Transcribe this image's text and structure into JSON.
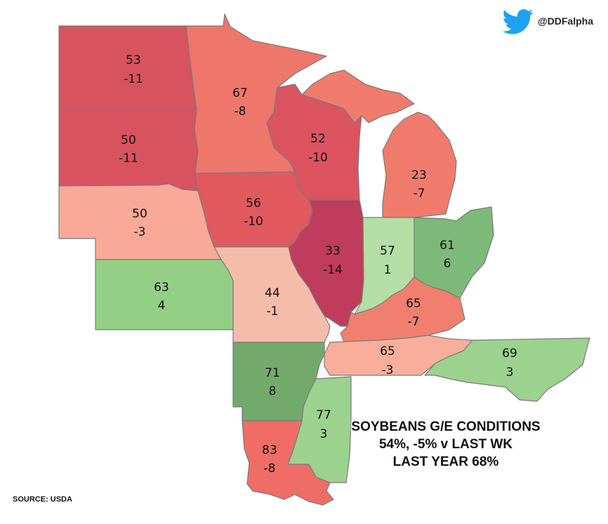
{
  "brand": {
    "handle": "@DDFalpha",
    "icon": "twitter-bird-icon",
    "icon_color": "#1DA1F2"
  },
  "summary": {
    "line1": "SOYBEANS G/E CONDITIONS",
    "line2": "54%, -5% v LAST WK",
    "line3": "LAST YEAR 68%"
  },
  "source": "SOURCE: USDA",
  "states": [
    {
      "id": "ND",
      "value": "53",
      "change": "-11",
      "color": "#d9525f"
    },
    {
      "id": "SD",
      "value": "50",
      "change": "-11",
      "color": "#d9525f"
    },
    {
      "id": "NE",
      "value": "50",
      "change": "-3",
      "color": "#f8a998"
    },
    {
      "id": "KS",
      "value": "63",
      "change": "4",
      "color": "#93cf85"
    },
    {
      "id": "MN",
      "value": "67",
      "change": "-8",
      "color": "#ef766b"
    },
    {
      "id": "IA",
      "value": "56",
      "change": "-10",
      "color": "#e0595f"
    },
    {
      "id": "MO",
      "value": "44",
      "change": "-1",
      "color": "#f6bcab"
    },
    {
      "id": "WI",
      "value": "52",
      "change": "-10",
      "color": "#db5460"
    },
    {
      "id": "IL",
      "value": "33",
      "change": "-14",
      "color": "#c03c5c"
    },
    {
      "id": "MI",
      "value": "23",
      "change": "-7",
      "color": "#f07b6d"
    },
    {
      "id": "IN",
      "value": "57",
      "change": "1",
      "color": "#b4dea5"
    },
    {
      "id": "OH",
      "value": "61",
      "change": "6",
      "color": "#7db978"
    },
    {
      "id": "KY",
      "value": "65",
      "change": "-7",
      "color": "#f07f6f"
    },
    {
      "id": "TN",
      "value": "65",
      "change": "-3",
      "color": "#f9ae9b"
    },
    {
      "id": "NC",
      "value": "69",
      "change": "3",
      "color": "#9bd28e"
    },
    {
      "id": "AR",
      "value": "71",
      "change": "8",
      "color": "#72aa6c"
    },
    {
      "id": "MS",
      "value": "77",
      "change": "3",
      "color": "#9bd28e"
    },
    {
      "id": "LA",
      "value": "83",
      "change": "-8",
      "color": "#ef6d66"
    }
  ]
}
